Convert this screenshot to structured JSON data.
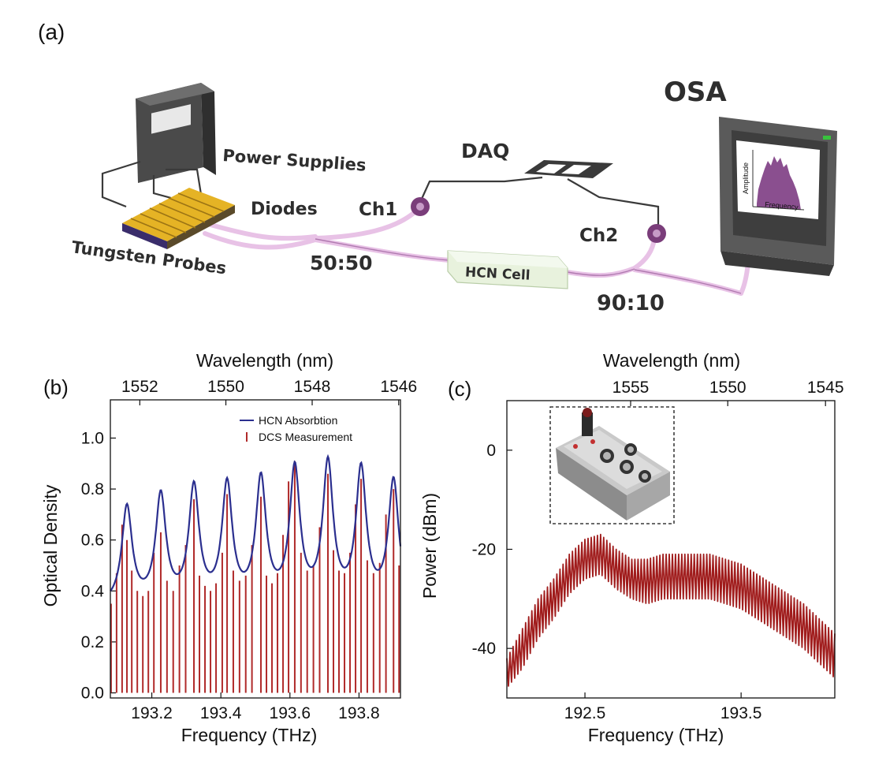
{
  "panel_a": {
    "label": "(a)",
    "osa": "OSA",
    "daq": "DAQ",
    "power_supplies": "Power Supplies",
    "diodes": "Diodes",
    "ch1": "Ch1",
    "ch2": "Ch2",
    "tungsten_probes": "Tungsten Probes",
    "split_5050": "50:50",
    "hcn_cell": "HCN Cell",
    "split_9010": "90:10",
    "osa_screen_ylabel": "Amplitude",
    "osa_screen_xlabel": "Frequency"
  },
  "chart_data": [
    {
      "panel": "(b)",
      "type": "line",
      "xlabel": "Frequency (THz)",
      "ylabel": "Optical Density",
      "top_label": "Wavelength (nm)",
      "xlim": [
        193.08,
        193.92
      ],
      "ylim": [
        -0.02,
        1.15
      ],
      "x_ticks": [
        "193.2",
        "193.4",
        "193.6",
        "193.8"
      ],
      "x_tick_values": [
        193.2,
        193.4,
        193.6,
        193.8
      ],
      "y_ticks": [
        "0.0",
        "0.2",
        "0.4",
        "0.6",
        "0.8",
        "1.0"
      ],
      "y_tick_values": [
        0.0,
        0.2,
        0.4,
        0.6,
        0.8,
        1.0
      ],
      "top_ticks": [
        "1552",
        "1550",
        "1548",
        "1546"
      ],
      "top_tick_values": [
        1552,
        1550,
        1548,
        1546
      ],
      "legend": [
        "HCN Absorbtion",
        "DCS Measurement"
      ],
      "legend_position": "top-right",
      "series": [
        {
          "name": "HCN Absorbtion",
          "kind": "line",
          "color": "#2b2f8f",
          "peaks_x": [
            193.128,
            193.226,
            193.322,
            193.418,
            193.516,
            193.614,
            193.71,
            193.806,
            193.9
          ],
          "peaks_y": [
            0.72,
            0.76,
            0.79,
            0.8,
            0.82,
            0.86,
            0.88,
            0.86,
            0.82
          ],
          "baseline": 0.34,
          "width_thz": 0.018
        },
        {
          "name": "DCS Measurement",
          "kind": "stems",
          "color": "#b02a2a",
          "x": [
            193.082,
            193.098,
            193.114,
            193.128,
            193.142,
            193.158,
            193.174,
            193.19,
            193.206,
            193.226,
            193.244,
            193.262,
            193.28,
            193.298,
            193.322,
            193.338,
            193.354,
            193.37,
            193.386,
            193.404,
            193.418,
            193.436,
            193.454,
            193.472,
            193.49,
            193.516,
            193.532,
            193.548,
            193.564,
            193.58,
            193.596,
            193.614,
            193.632,
            193.65,
            193.668,
            193.686,
            193.71,
            193.726,
            193.742,
            193.758,
            193.774,
            193.79,
            193.806,
            193.824,
            193.842,
            193.86,
            193.878,
            193.9,
            193.916
          ],
          "y": [
            0.35,
            0.47,
            0.66,
            0.6,
            0.48,
            0.4,
            0.38,
            0.4,
            0.55,
            0.63,
            0.44,
            0.4,
            0.5,
            0.58,
            0.76,
            0.46,
            0.42,
            0.4,
            0.43,
            0.55,
            0.78,
            0.48,
            0.44,
            0.46,
            0.58,
            0.77,
            0.46,
            0.43,
            0.47,
            0.62,
            0.83,
            0.91,
            0.55,
            0.48,
            0.5,
            0.65,
            0.86,
            0.56,
            0.48,
            0.47,
            0.55,
            0.74,
            0.84,
            0.52,
            0.47,
            0.51,
            0.7,
            0.8,
            0.5
          ]
        }
      ]
    },
    {
      "panel": "(c)",
      "type": "line",
      "xlabel": "Frequency (THz)",
      "ylabel": "Power (dBm)",
      "top_label": "Wavelength (nm)",
      "xlim": [
        192.0,
        194.1
      ],
      "ylim": [
        -50,
        10
      ],
      "x_ticks": [
        "192.5",
        "193.5"
      ],
      "x_tick_values": [
        192.5,
        193.5
      ],
      "y_ticks": [
        "0",
        "-20",
        "-40"
      ],
      "y_tick_values": [
        0,
        -20,
        -40
      ],
      "top_ticks": [
        "1555",
        "1550",
        "1545"
      ],
      "top_tick_values": [
        1555,
        1550,
        1545
      ],
      "series": [
        {
          "name": "",
          "kind": "comb",
          "color": "#a01c1c",
          "envelope_x": [
            192.0,
            192.1,
            192.2,
            192.3,
            192.4,
            192.5,
            192.6,
            192.7,
            192.8,
            192.9,
            193.0,
            193.1,
            193.2,
            193.3,
            193.4,
            193.5,
            193.6,
            193.7,
            193.8,
            193.9,
            194.0,
            194.1
          ],
          "envelope_top": [
            -42,
            -36,
            -30,
            -26,
            -21,
            -18,
            -17,
            -20,
            -22,
            -22,
            -21,
            -21,
            -21,
            -21,
            -22,
            -23,
            -25,
            -27,
            -29,
            -31,
            -34,
            -37
          ],
          "envelope_bottom": [
            -48,
            -44,
            -38,
            -34,
            -29,
            -26,
            -25,
            -28,
            -30,
            -31,
            -30,
            -30,
            -30,
            -30,
            -31,
            -32,
            -34,
            -36,
            -38,
            -40,
            -43,
            -46
          ],
          "line_spacing_thz": 0.02
        }
      ]
    }
  ]
}
